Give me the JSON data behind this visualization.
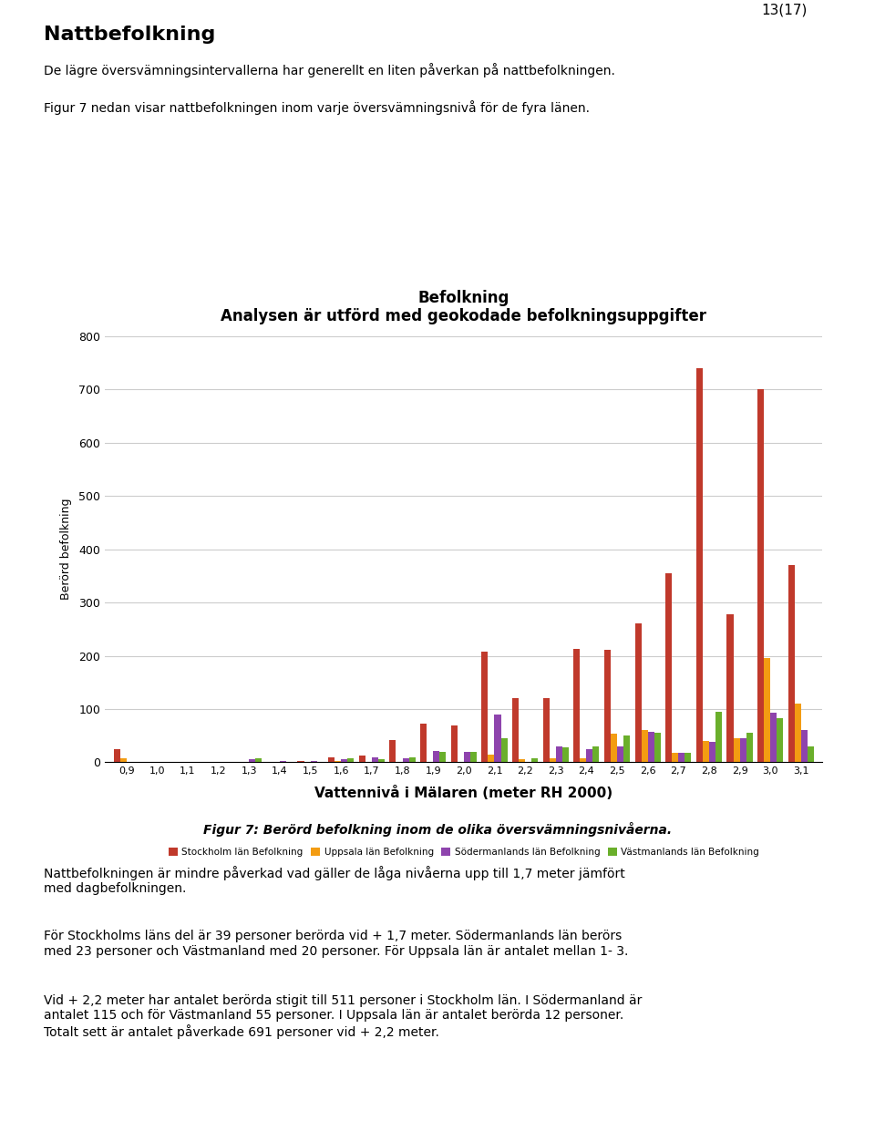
{
  "title": "Befolkning",
  "subtitle": "Analysen är utförd med geokodade befolkningsuppgifter",
  "xlabel": "Vattennivå i Mälaren (meter RH 2000)",
  "ylabel": "Berörd befolkning",
  "ylim": [
    0,
    800
  ],
  "yticks": [
    0,
    100,
    200,
    300,
    400,
    500,
    600,
    700,
    800
  ],
  "categories": [
    "0,9",
    "1,0",
    "1,1",
    "1,2",
    "1,3",
    "1,4",
    "1,5",
    "1,6",
    "1,7",
    "1,8",
    "1,9",
    "2,0",
    "2,1",
    "2,2",
    "2,3",
    "2,4",
    "2,5",
    "2,6",
    "2,7",
    "2,8",
    "2,9",
    "3,0",
    "3,1"
  ],
  "stockholm": [
    25,
    1,
    0,
    0,
    1,
    1,
    2,
    10,
    12,
    42,
    72,
    70,
    207,
    120,
    120,
    213,
    212,
    261,
    355,
    740,
    278,
    700,
    370
  ],
  "uppsala": [
    8,
    0,
    0,
    0,
    0,
    0,
    0,
    3,
    0,
    0,
    0,
    0,
    15,
    5,
    8,
    8,
    53,
    60,
    17,
    40,
    45,
    195,
    110
  ],
  "sodermanland": [
    0,
    0,
    0,
    0,
    5,
    2,
    2,
    5,
    10,
    8,
    22,
    20,
    90,
    0,
    30,
    25,
    30,
    58,
    17,
    39,
    46,
    93,
    60
  ],
  "vastmanland": [
    0,
    0,
    0,
    0,
    8,
    0,
    0,
    8,
    5,
    10,
    20,
    20,
    45,
    7,
    28,
    30,
    50,
    55,
    18,
    95,
    55,
    82,
    30
  ],
  "stockholm_color": "#C0392B",
  "uppsala_color": "#F39C12",
  "sodermanland_color": "#8E44AD",
  "vastmanland_color": "#6AAF2B",
  "legend_labels": [
    "Stockholm län Befolkning",
    "Uppsala län Befolkning",
    "Södermanlands län Befolkning",
    "Västmanlands län Befolkning"
  ],
  "background_color": "#FFFFFF",
  "grid_color": "#CCCCCC",
  "figure_caption": "Figur 7: Berörd befolkning inom de olika översvämningsnivåerna."
}
